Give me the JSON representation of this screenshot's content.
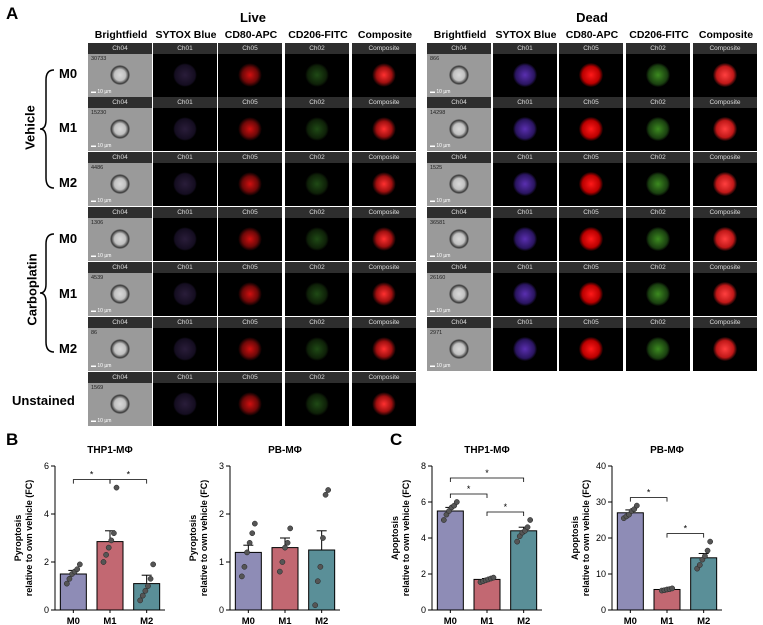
{
  "panels": {
    "a": "A",
    "b": "B",
    "c": "C"
  },
  "imaging": {
    "group_titles": [
      "Live",
      "Dead"
    ],
    "columns": [
      "Brightfield",
      "SYTOX Blue",
      "CD80-APC",
      "CD206-FITC",
      "Composite"
    ],
    "channels": [
      "Ch04",
      "Ch01",
      "Ch05",
      "Ch02",
      "Composite"
    ],
    "scale_label": "10 µm",
    "conditions": [
      "Vehicle",
      "Carboplatin"
    ],
    "row_labels": [
      "M0",
      "M1",
      "M2",
      "M0",
      "M1",
      "M2"
    ],
    "unstained_label": "Unstained",
    "live_counts": [
      "30733",
      "15230",
      "4486",
      "1306",
      "4539",
      "86"
    ],
    "dead_counts": [
      "866",
      "14298",
      "1525",
      "36581",
      "26160",
      "2971"
    ],
    "unstained_count": "1569"
  },
  "chart_data": [
    {
      "type": "bar",
      "title": "THP1-MΦ",
      "ylabel": "Pyroptosis\nrelative to own vehicle (FC)",
      "categories": [
        "M0",
        "M1",
        "M2"
      ],
      "values": [
        1.5,
        2.85,
        1.1
      ],
      "errors": [
        0.15,
        0.45,
        0.35
      ],
      "ylim": [
        0,
        6
      ],
      "yticks": [
        0,
        2,
        4,
        6
      ],
      "points": [
        [
          1.1,
          1.3,
          1.5,
          1.6,
          1.7,
          1.9
        ],
        [
          2.0,
          2.3,
          2.6,
          2.9,
          3.2,
          5.1
        ],
        [
          0.4,
          0.6,
          0.8,
          1.0,
          1.3,
          1.9
        ]
      ],
      "sig": [
        {
          "from": 0,
          "to": 1,
          "label": "*"
        },
        {
          "from": 1,
          "to": 2,
          "label": "*"
        }
      ]
    },
    {
      "type": "bar",
      "title": "PB-MΦ",
      "ylabel": "Pyroptosis\nrelative to own vehicle (FC)",
      "categories": [
        "M0",
        "M1",
        "M2"
      ],
      "values": [
        1.2,
        1.3,
        1.25
      ],
      "errors": [
        0.15,
        0.2,
        0.4
      ],
      "ylim": [
        0,
        3
      ],
      "yticks": [
        0,
        1,
        2,
        3
      ],
      "points": [
        [
          0.7,
          0.9,
          1.2,
          1.4,
          1.6,
          1.8
        ],
        [
          0.8,
          1.0,
          1.3,
          1.4,
          1.7
        ],
        [
          0.1,
          0.6,
          0.9,
          1.5,
          2.4,
          2.5
        ]
      ],
      "sig": []
    },
    {
      "type": "bar",
      "title": "THP1-MΦ",
      "ylabel": "Apoptosis\nrelative to own vehicle (FC)",
      "categories": [
        "M0",
        "M1",
        "M2"
      ],
      "values": [
        5.5,
        1.7,
        4.4
      ],
      "errors": [
        0.2,
        0.05,
        0.2
      ],
      "ylim": [
        0,
        8
      ],
      "yticks": [
        0,
        2,
        4,
        6,
        8
      ],
      "points": [
        [
          5.0,
          5.3,
          5.5,
          5.7,
          5.8,
          6.0
        ],
        [
          1.55,
          1.6,
          1.65,
          1.7,
          1.75,
          1.8
        ],
        [
          3.8,
          4.1,
          4.3,
          4.4,
          4.6,
          5.0
        ]
      ],
      "sig": [
        {
          "from": 0,
          "to": 1,
          "label": "*"
        },
        {
          "from": 1,
          "to": 2,
          "label": "*"
        },
        {
          "from": 0,
          "to": 2,
          "label": "*"
        }
      ]
    },
    {
      "type": "bar",
      "title": "PB-MΦ",
      "ylabel": "Apoptosis\nrelative to own vehicle (FC)",
      "categories": [
        "M0",
        "M1",
        "M2"
      ],
      "values": [
        27,
        5.7,
        14.5
      ],
      "errors": [
        0.8,
        0.2,
        1.2
      ],
      "ylim": [
        0,
        40
      ],
      "yticks": [
        0,
        10,
        20,
        30,
        40
      ],
      "points": [
        [
          25.5,
          26.0,
          26.5,
          27.5,
          28.0,
          29.0
        ],
        [
          5.4,
          5.5,
          5.7,
          5.8,
          6.0
        ],
        [
          11.5,
          12.5,
          14.0,
          15.0,
          16.5,
          19.0
        ]
      ],
      "sig": [
        {
          "from": 0,
          "to": 1,
          "label": "*"
        },
        {
          "from": 1,
          "to": 2,
          "label": "*"
        }
      ]
    }
  ],
  "colors": {
    "M0": "#8e8cb6",
    "M1": "#c26872",
    "M2": "#5a8f98"
  }
}
